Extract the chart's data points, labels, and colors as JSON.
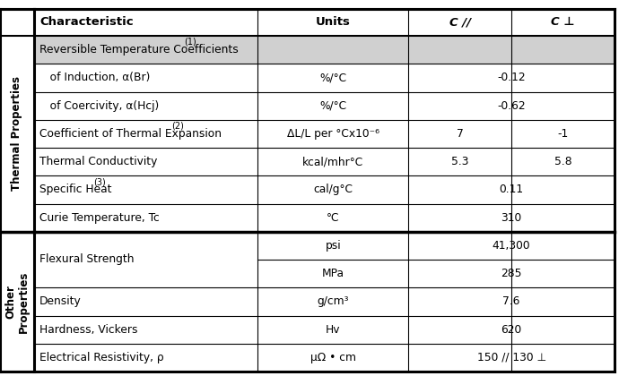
{
  "header": [
    "Characteristic",
    "Units",
    "C //",
    "C ⊥"
  ],
  "rows": [
    {
      "char_display": "Reversible Temperature Coefficients",
      "char_sup": "(1)",
      "units": "",
      "c_par": "",
      "c_perp": "",
      "shaded": true,
      "span_value": true,
      "indent": false,
      "section": 1,
      "flexural_top": false,
      "flexural_bot": false
    },
    {
      "char_display": "   of Induction, α(Br)",
      "char_sup": "",
      "units": "%/°C",
      "c_par": "-0.12",
      "c_perp": "",
      "shaded": false,
      "span_value": true,
      "indent": false,
      "section": 1,
      "flexural_top": false,
      "flexural_bot": false
    },
    {
      "char_display": "   of Coercivity, α(Hcj)",
      "char_sup": "",
      "units": "%/°C",
      "c_par": "-0.62",
      "c_perp": "",
      "shaded": false,
      "span_value": true,
      "indent": false,
      "section": 1,
      "flexural_top": false,
      "flexural_bot": false
    },
    {
      "char_display": "Coefficient of Thermal Expansion",
      "char_sup": "(2)",
      "units": "ΔL/L per °Cx10⁻⁶",
      "c_par": "7",
      "c_perp": "-1",
      "shaded": false,
      "span_value": false,
      "indent": false,
      "section": 1,
      "flexural_top": false,
      "flexural_bot": false
    },
    {
      "char_display": "Thermal Conductivity",
      "char_sup": "",
      "units": "kcal/mhr°C",
      "c_par": "5.3",
      "c_perp": "5.8",
      "shaded": false,
      "span_value": false,
      "indent": false,
      "section": 1,
      "flexural_top": false,
      "flexural_bot": false
    },
    {
      "char_display": "Specific Heat",
      "char_sup": "(3)",
      "units": "cal/g°C",
      "c_par": "0.11",
      "c_perp": "",
      "shaded": false,
      "span_value": true,
      "indent": false,
      "section": 1,
      "flexural_top": false,
      "flexural_bot": false
    },
    {
      "char_display": "Curie Temperature, Tc",
      "char_sup": "",
      "units": "°C",
      "c_par": "310",
      "c_perp": "",
      "shaded": false,
      "span_value": true,
      "indent": false,
      "section": 1,
      "flexural_top": false,
      "flexural_bot": false
    },
    {
      "char_display": "Flexural Strength",
      "char_sup": "",
      "units": "psi",
      "c_par": "41,300",
      "c_perp": "",
      "shaded": false,
      "span_value": true,
      "indent": false,
      "section": 2,
      "flexural_top": true,
      "flexural_bot": false
    },
    {
      "char_display": "",
      "char_sup": "",
      "units": "MPa",
      "c_par": "285",
      "c_perp": "",
      "shaded": false,
      "span_value": true,
      "indent": false,
      "section": 2,
      "flexural_top": false,
      "flexural_bot": true
    },
    {
      "char_display": "Density",
      "char_sup": "",
      "units": "g/cm³",
      "c_par": "7.6",
      "c_perp": "",
      "shaded": false,
      "span_value": true,
      "indent": false,
      "section": 2,
      "flexural_top": false,
      "flexural_bot": false
    },
    {
      "char_display": "Hardness, Vickers",
      "char_sup": "",
      "units": "Hv",
      "c_par": "620",
      "c_perp": "",
      "shaded": false,
      "span_value": true,
      "indent": false,
      "section": 2,
      "flexural_top": false,
      "flexural_bot": false
    },
    {
      "char_display": "Electrical Resistivity, ρ",
      "char_sup": "",
      "units": "μΩ • cm",
      "c_par": "150 // 130 ⊥",
      "c_perp": "",
      "shaded": false,
      "span_value": true,
      "indent": false,
      "section": 2,
      "flexural_top": false,
      "flexural_bot": false
    }
  ],
  "section1_label": "Thermal Properties",
  "section2_label": "Other\nProperties",
  "shaded_bg": "#d0d0d0",
  "row_bg": "#ffffff",
  "text_color": "#000000",
  "header_fontsize": 9.5,
  "row_fontsize": 8.8,
  "section_fontsize": 8.5,
  "sup_fontsize": 7.0
}
